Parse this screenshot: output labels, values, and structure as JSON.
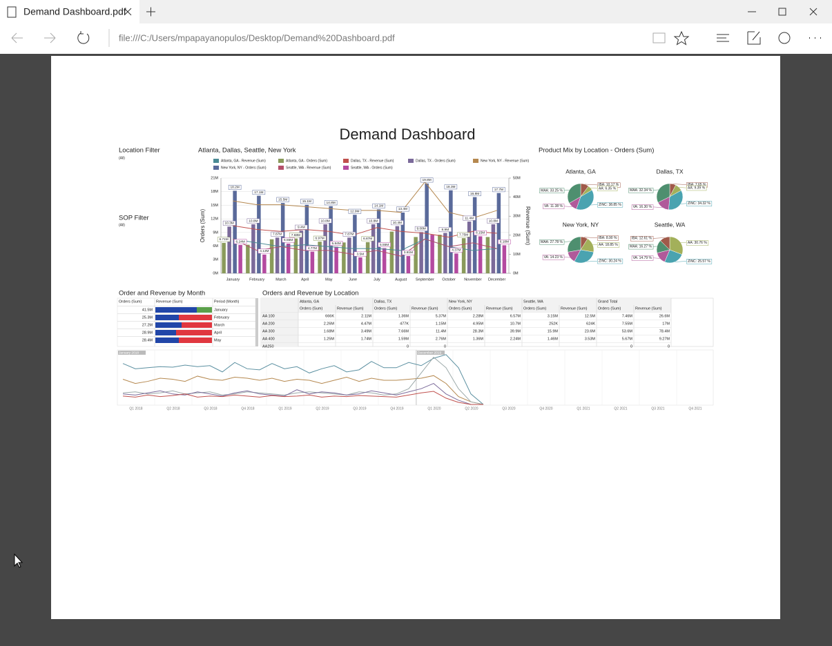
{
  "browser": {
    "tab_title": "Demand Dashboard.pdf",
    "url": "file:///C:/Users/mpapayanopulos/Desktop/Demand%20Dashboard.pdf"
  },
  "dashboard": {
    "title": "Demand Dashboard",
    "filters": [
      {
        "label": "Location Filter",
        "value": "(All)"
      },
      {
        "label": "SOP Filter",
        "value": "(All)"
      }
    ],
    "combo_chart": {
      "type": "bar",
      "title": "Atlanta, Dallas, Seattle, New York",
      "y_label": "Orders (Sum)",
      "y2_label": "Revenue (Sum)",
      "grid": true,
      "categories": [
        "January",
        "February",
        "March",
        "April",
        "May",
        "June",
        "July",
        "August",
        "September",
        "October",
        "November",
        "December"
      ],
      "ylim": [
        0,
        21
      ],
      "yticks": [
        {
          "value": 0,
          "label": "0M"
        },
        {
          "value": 3,
          "label": "3M"
        },
        {
          "value": 6,
          "label": "6M"
        },
        {
          "value": 9,
          "label": "9M"
        },
        {
          "value": 12,
          "label": "12M"
        },
        {
          "value": 15,
          "label": "15M"
        },
        {
          "value": 18,
          "label": "18M"
        },
        {
          "value": 21,
          "label": "21M"
        }
      ],
      "y2lim": [
        0,
        50
      ],
      "y2ticks": [
        {
          "value": 0,
          "label": "0M"
        },
        {
          "value": 10,
          "label": "10M"
        },
        {
          "value": 20,
          "label": "20M"
        },
        {
          "value": 30,
          "label": "30M"
        },
        {
          "value": 40,
          "label": "40M"
        },
        {
          "value": 50,
          "label": "50M"
        }
      ],
      "series": [
        {
          "name": "Atlanta, GA - Revenue (Sum)",
          "type": "line",
          "axis": "y2",
          "color": "#4a8a94",
          "values": [
            18,
            16,
            14,
            15,
            14,
            13,
            13,
            12,
            18,
            14,
            12,
            13
          ]
        },
        {
          "name": "Atlanta, GA - Orders (Sum)",
          "type": "bar",
          "color": "#8a9a5b",
          "values": [
            6.71,
            6.3,
            7.5,
            7.68,
            6.97,
            6.8,
            6.87,
            9.2,
            8.0,
            8.5,
            7.75,
            8.0
          ],
          "value_labels": [
            "6.71M",
            null,
            null,
            "7.68M",
            "6.97M",
            null,
            "6.87M",
            null,
            null,
            null,
            "7.75M",
            null
          ]
        },
        {
          "name": "Dallas, TX - Revenue (Sum)",
          "type": "line",
          "axis": "y2",
          "color": "#c0504d",
          "values": [
            25,
            23,
            22,
            23,
            22,
            20,
            24,
            22,
            21,
            19,
            22,
            21
          ]
        },
        {
          "name": "Dallas, TX - Orders (Sum)",
          "type": "bar",
          "color": "#7b6a9a",
          "values": [
            10.3,
            10.8,
            7.87,
            9.4,
            10.8,
            7.87,
            10.8,
            10.4,
            9.08,
            8.9,
            11.4,
            10.8
          ],
          "value_labels": [
            "10.3M",
            "10.8M",
            "7.87M",
            "9.4M",
            "10.8M",
            "7.87M",
            "10.8M",
            "10.4M",
            "9.08M",
            "8.9M",
            "11.4M",
            "10.8M"
          ]
        },
        {
          "name": "New York, NY - Revenue (Sum)",
          "type": "line",
          "axis": "y2",
          "color": "#b5884f",
          "values": [
            38,
            36,
            36,
            35,
            34,
            33,
            33,
            32,
            48,
            32,
            29,
            33
          ]
        },
        {
          "name": "New York, NY - Orders (Sum)",
          "type": "bar",
          "color": "#5a6a9a",
          "values": [
            18.2,
            17.1,
            15.5,
            15.1,
            14.8,
            12.9,
            14.1,
            13.4,
            19.8,
            18.3,
            16.8,
            17.7
          ],
          "value_labels": [
            "18.2M",
            "17.1M",
            "15.5M",
            "15.1M",
            "14.8M",
            "12.9M",
            "14.1M",
            "13.4M",
            "19.8M",
            "18.3M",
            "16.8M",
            "17.7M"
          ]
        },
        {
          "name": "Seattle, WA - Revenue (Sum)",
          "type": "line",
          "axis": "y2",
          "color": "#b4506a",
          "values": [
            18,
            12,
            14,
            12,
            12,
            10,
            12,
            9,
            18,
            14,
            16,
            13
          ]
        },
        {
          "name": "Seattle, WA - Orders (Sum)",
          "type": "bar",
          "color": "#b44aa0",
          "values": [
            6.24,
            4.13,
            6.55,
            4.77,
            5.84,
            3.5,
            5.55,
            3.81,
            8.5,
            4.37,
            8.15,
            6.18
          ],
          "value_labels": [
            "6.24M",
            "4.13M",
            "6.55M",
            "4.77M",
            "5.84M",
            "3.5M",
            "5.55M",
            "3.81M",
            null,
            "4.37M",
            "8.15M",
            "6.18M"
          ]
        }
      ]
    },
    "product_mix": {
      "title": "Product Mix by Location - Orders (Sum)",
      "colors": [
        "#a05a4a",
        "#a3b05a",
        "#4aa3b0",
        "#b05a9a",
        "#4e8f6f"
      ],
      "pies": [
        {
          "type": "pie",
          "title": "Atlanta, GA",
          "categories": [
            "IBA",
            "AA",
            "ZINC",
            "VA",
            "MAA"
          ],
          "values": [
            10.17,
            6.35,
            38.85,
            11.38,
            33.25
          ],
          "value_labels": [
            "IBA: 10.17 %",
            "AA: 6.35 %",
            "ZINC: 38.85 %",
            "VA: 11.38 %",
            "MAA: 33.25 %"
          ]
        },
        {
          "type": "pie",
          "title": "Dallas, TX",
          "categories": [
            "IBA",
            "AA",
            "ZINC",
            "VA",
            "MAA"
          ],
          "values": [
            7.65,
            9.39,
            34.32,
            16.3,
            32.34
          ],
          "value_labels": [
            "IBA: 7.65 %",
            "AA: 9.39 %",
            "ZINC: 34.32 %",
            "VA: 16.30 %",
            "MAA: 32.34 %"
          ]
        },
        {
          "type": "pie",
          "title": "New York, NY",
          "categories": [
            "IBA",
            "AA",
            "ZINC",
            "VA",
            "MAA"
          ],
          "values": [
            8.9,
            18.85,
            30.24,
            14.23,
            27.78
          ],
          "value_labels": [
            "IBA: 8.90 %",
            "AA: 18.85 %",
            "ZINC: 30.24 %",
            "VA: 14.23 %",
            "MAA: 27.78 %"
          ]
        },
        {
          "type": "pie",
          "title": "Seattle, WA",
          "categories": [
            "AA",
            "ZINC",
            "VA",
            "MAA",
            "IBA"
          ],
          "values": [
            30.76,
            25.57,
            14.79,
            16.27,
            12.61
          ],
          "value_labels": [
            "AA: 30.76 %",
            "ZINC: 25.57 %",
            "VA: 14.79 %",
            "MAA: 16.27 %",
            "IBA: 12.61 %"
          ]
        }
      ]
    },
    "month_table": {
      "title": "Order and Revenue by Month",
      "headers": [
        "Orders (Sum)",
        "Revenue (Sum)",
        "Period (Month)"
      ],
      "rows": [
        [
          "41.5M",
          "January"
        ],
        [
          "25.3M",
          "February"
        ],
        [
          "27.2M",
          "March"
        ],
        [
          "28.9M",
          "April"
        ],
        [
          "28.4M",
          "May"
        ]
      ]
    },
    "location_table": {
      "title": "Orders and Revenue by Location",
      "groups": [
        "Atlanta, GA",
        "Dallas, TX",
        "New York, NY",
        "Seattle, WA",
        "Grand Total"
      ],
      "subheaders": [
        "Orders (Sum)",
        "Revenue (Sum)"
      ],
      "rows": [
        [
          "AA 100",
          "666K",
          "2.11M",
          "1.36M",
          "5.37M",
          "2.28M",
          "6.57M",
          "3.15M",
          "12.5M",
          "7.46M",
          "26.6M"
        ],
        [
          "AA 200",
          "2.26M",
          "4.47M",
          "477K",
          "1.15M",
          "4.95M",
          "10.7M",
          "252K",
          "624K",
          "7.55M",
          "17M"
        ],
        [
          "AA 300",
          "1.68M",
          "3.49M",
          "7.66M",
          "11.4M",
          "28.3M",
          "39.9M",
          "15.9M",
          "23.6M",
          "53.6M",
          "78.4M"
        ],
        [
          "AA 400",
          "1.25M",
          "1.74M",
          "1.59M",
          "2.76M",
          "1.36M",
          "2.24M",
          "1.46M",
          "3.53M",
          "5.67M",
          "9.27M"
        ],
        [
          "AA250",
          null,
          null,
          "0",
          "0",
          null,
          null,
          null,
          null,
          "0",
          "0"
        ]
      ]
    },
    "timeline": {
      "type": "line",
      "x_labels": [
        "Q1 2018",
        "Q2 2018",
        "Q3 2018",
        "Q4 2018",
        "Q1 2019",
        "Q2 2019",
        "Q3 2019",
        "Q4 2019",
        "Q1 2020",
        "Q2 2020",
        "Q3 2020",
        "Q4 2020",
        "Q1 2021",
        "Q2 2021",
        "Q3 2021",
        "Q4 2021"
      ],
      "range_labels": [
        "January 2018",
        "December 2019"
      ],
      "series": [
        {
          "color": "#5a8fa0",
          "values": [
            78,
            68,
            70,
            72,
            71,
            75,
            72,
            74,
            62,
            80,
            68,
            66,
            78,
            68,
            72,
            60,
            68,
            74,
            62,
            66,
            82,
            70,
            70,
            80,
            74,
            88,
            95,
            70,
            20,
            0
          ]
        },
        {
          "color": "#b5884f",
          "values": [
            48,
            40,
            44,
            50,
            48,
            44,
            54,
            48,
            46,
            52,
            50,
            46,
            50,
            44,
            48,
            46,
            40,
            46,
            52,
            44,
            50,
            46,
            46,
            48,
            50,
            55,
            40,
            15,
            5,
            0
          ]
        },
        {
          "color": "#9aa8a8",
          "values": [
            22,
            24,
            20,
            22,
            26,
            20,
            22,
            24,
            18,
            20,
            24,
            22,
            20,
            18,
            22,
            24,
            22,
            20,
            18,
            24,
            22,
            18,
            20,
            30,
            60,
            90,
            70,
            30,
            5,
            0
          ]
        },
        {
          "color": "#7b6a9a",
          "values": [
            20,
            18,
            22,
            26,
            20,
            18,
            24,
            20,
            16,
            22,
            26,
            20,
            18,
            16,
            28,
            20,
            24,
            22,
            18,
            20,
            26,
            22,
            18,
            24,
            30,
            40,
            20,
            8,
            0,
            0
          ]
        },
        {
          "color": "#c0504d",
          "values": [
            16,
            14,
            18,
            15,
            17,
            20,
            14,
            16,
            15,
            18,
            16,
            14,
            17,
            15,
            16,
            18,
            14,
            16,
            15,
            17,
            16,
            15,
            14,
            18,
            22,
            25,
            12,
            4,
            0,
            0
          ]
        }
      ]
    }
  }
}
